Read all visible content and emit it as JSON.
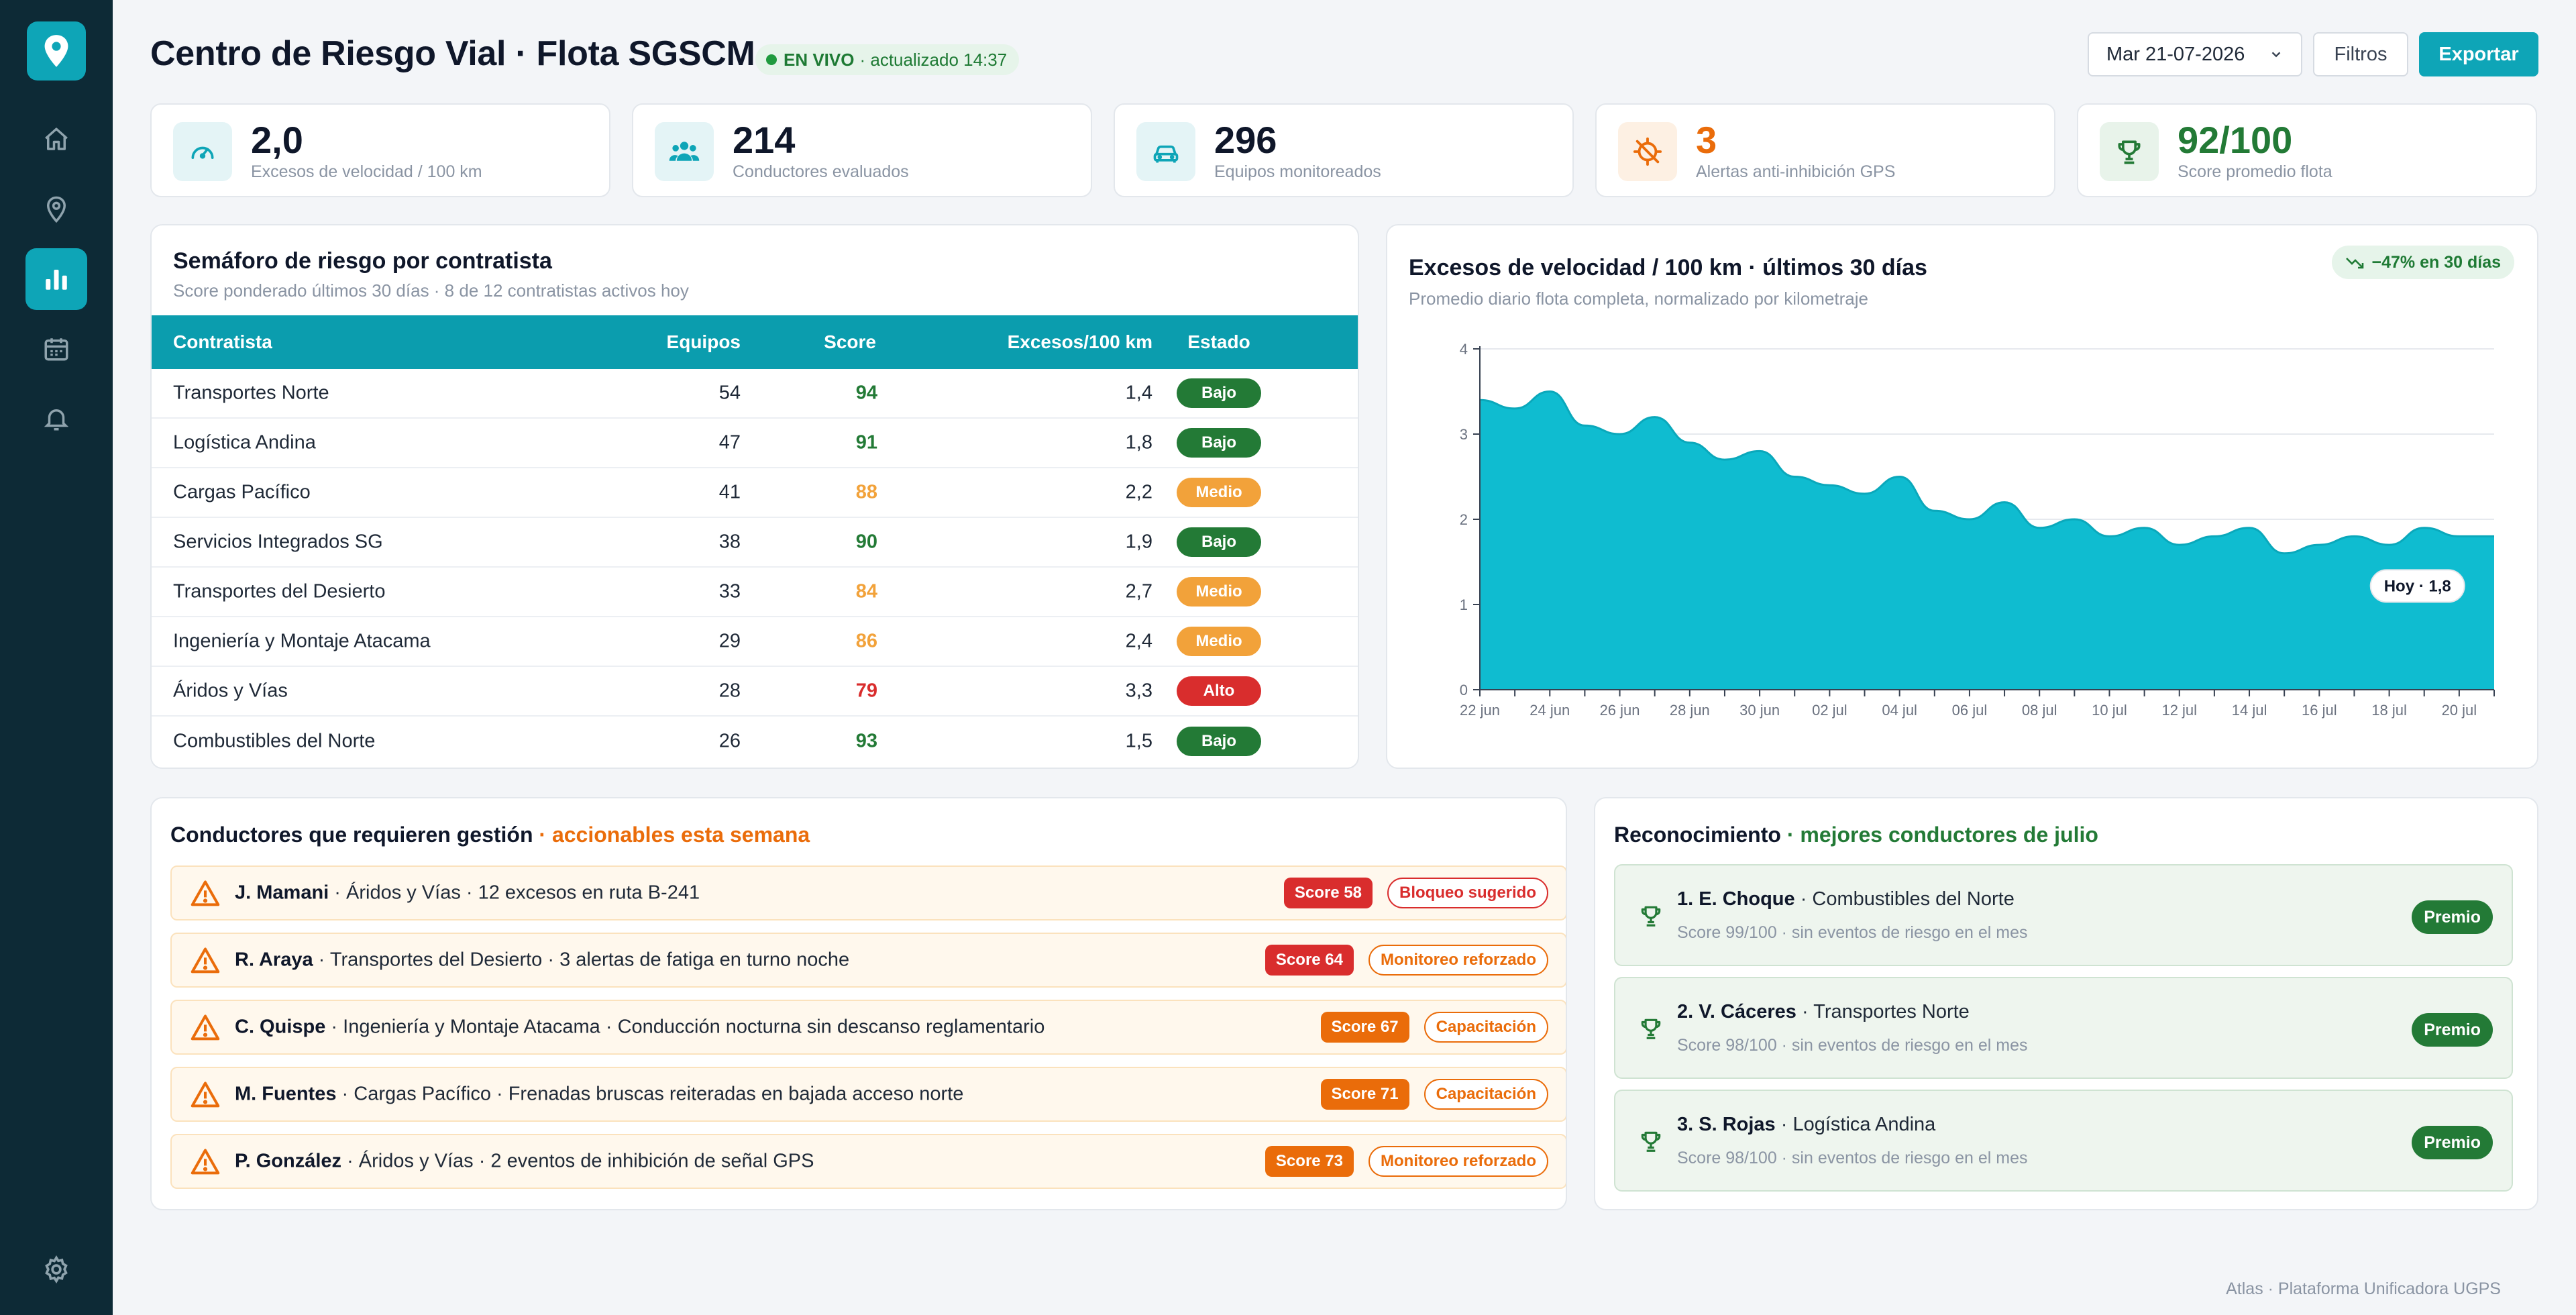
{
  "header": {
    "title": "Centro de Riesgo Vial · Flota SGSCM",
    "live_label": "EN VIVO",
    "live_updated": "· actualizado 14:37",
    "date_value": "Mar 21-07-2026",
    "filters_label": "Filtros",
    "export_label": "Exportar"
  },
  "kpis": [
    {
      "value": "2,0",
      "label": "Excesos de velocidad / 100 km",
      "icon": "speedometer-icon",
      "color": "#0ea5b7",
      "bg": "#e4f4f6"
    },
    {
      "value": "214",
      "label": "Conductores evaluados",
      "icon": "users-icon",
      "color": "#0ea5b7",
      "bg": "#e4f4f6"
    },
    {
      "value": "296",
      "label": "Equipos monitoreados",
      "icon": "car-icon",
      "color": "#0ea5b7",
      "bg": "#e4f4f6"
    },
    {
      "value": "3",
      "label": "Alertas anti-inhibición GPS",
      "icon": "gps-off-icon",
      "color": "#ea6c0a",
      "bg": "#fdf0e3"
    },
    {
      "value": "92/100",
      "label": "Score promedio flota",
      "icon": "trophy-icon",
      "color": "#237a36",
      "bg": "#e8f3ea"
    }
  ],
  "risk_table": {
    "title": "Semáforo de riesgo por contratista",
    "subtitle": "Score ponderado últimos 30 días · 8 de 12 contratistas activos hoy",
    "headers": {
      "name": "Contratista",
      "equipment": "Equipos",
      "score": "Score",
      "excess": "Excesos/100 km",
      "status": "Estado"
    },
    "rows": [
      {
        "name": "Transportes Norte",
        "equipment": "54",
        "score": "94",
        "excess": "1,4",
        "status": "Bajo"
      },
      {
        "name": "Logística Andina",
        "equipment": "47",
        "score": "91",
        "excess": "1,8",
        "status": "Bajo"
      },
      {
        "name": "Cargas Pacífico",
        "equipment": "41",
        "score": "88",
        "excess": "2,2",
        "status": "Medio"
      },
      {
        "name": "Servicios Integrados SG",
        "equipment": "38",
        "score": "90",
        "excess": "1,9",
        "status": "Bajo"
      },
      {
        "name": "Transportes del Desierto",
        "equipment": "33",
        "score": "84",
        "excess": "2,7",
        "status": "Medio"
      },
      {
        "name": "Ingeniería y Montaje Atacama",
        "equipment": "29",
        "score": "86",
        "excess": "2,4",
        "status": "Medio"
      },
      {
        "name": "Áridos y Vías",
        "equipment": "28",
        "score": "79",
        "excess": "3,3",
        "status": "Alto"
      },
      {
        "name": "Combustibles del Norte",
        "equipment": "26",
        "score": "93",
        "excess": "1,5",
        "status": "Bajo"
      }
    ],
    "status_colors": {
      "Bajo": "#237a36",
      "Medio": "#f2a23a",
      "Alto": "#d92d2d"
    },
    "score_colors": {
      "Bajo": "#237a36",
      "Medio": "#f2a23a",
      "Alto": "#d92d2d"
    }
  },
  "chart_panel": {
    "title": "Excesos de velocidad / 100 km · últimos 30 días",
    "subtitle": "Promedio diario flota completa, normalizado por kilometraje",
    "trend_label": "−47% en 30 días"
  },
  "chart_data": {
    "type": "area",
    "x": [
      "22 jun",
      "23 jun",
      "24 jun",
      "25 jun",
      "26 jun",
      "27 jun",
      "28 jun",
      "29 jun",
      "30 jun",
      "01 jul",
      "02 jul",
      "03 jul",
      "04 jul",
      "05 jul",
      "06 jul",
      "07 jul",
      "08 jul",
      "09 jul",
      "10 jul",
      "11 jul",
      "12 jul",
      "13 jul",
      "14 jul",
      "15 jul",
      "16 jul",
      "17 jul",
      "18 jul",
      "19 jul",
      "20 jul",
      "21 jul"
    ],
    "values": [
      3.4,
      3.3,
      3.5,
      3.1,
      3.0,
      3.2,
      2.9,
      2.7,
      2.8,
      2.5,
      2.4,
      2.3,
      2.5,
      2.1,
      2.0,
      2.2,
      1.9,
      2.0,
      1.8,
      1.9,
      1.7,
      1.8,
      1.9,
      1.6,
      1.7,
      1.8,
      1.7,
      1.9,
      1.8,
      1.8
    ],
    "xticks": [
      "22 jun",
      "24 jun",
      "26 jun",
      "28 jun",
      "30 jun",
      "02 jul",
      "04 jul",
      "06 jul",
      "08 jul",
      "10 jul",
      "12 jul",
      "14 jul",
      "16 jul",
      "18 jul",
      "20 jul"
    ],
    "yticks": [
      "0",
      "1",
      "2",
      "3",
      "4"
    ],
    "ylim": [
      0,
      4
    ],
    "grid": true,
    "color": "#0fbcd0",
    "annotation": "Hoy · 1,8"
  },
  "drivers_panel": {
    "title": "Conductores que requieren gestión",
    "title_accent": "· accionables esta semana",
    "items": [
      {
        "name": "J. Mamani",
        "detail": "· Áridos y Vías · 12 excesos en ruta B-241",
        "score": "Score 58",
        "score_color": "#d92d2d",
        "action": "Bloqueo sugerido",
        "action_color": "#d92d2d"
      },
      {
        "name": "R. Araya",
        "detail": "· Transportes del Desierto · 3 alertas de fatiga en turno noche",
        "score": "Score 64",
        "score_color": "#d92d2d",
        "action": "Monitoreo reforzado",
        "action_color": "#ea6c0a"
      },
      {
        "name": "C. Quispe",
        "detail": "· Ingeniería y Montaje Atacama · Conducción nocturna sin descanso reglamentario",
        "score": "Score 67",
        "score_color": "#ea6c0a",
        "action": "Capacitación",
        "action_color": "#ea6c0a"
      },
      {
        "name": "M. Fuentes",
        "detail": "· Cargas Pacífico · Frenadas bruscas reiteradas en bajada acceso norte",
        "score": "Score 71",
        "score_color": "#ea6c0a",
        "action": "Capacitación",
        "action_color": "#ea6c0a"
      },
      {
        "name": "P. González",
        "detail": "· Áridos y Vías · 2 eventos de inhibición de señal GPS",
        "score": "Score 73",
        "score_color": "#ea6c0a",
        "action": "Monitoreo reforzado",
        "action_color": "#ea6c0a"
      }
    ]
  },
  "recognition_panel": {
    "title": "Reconocimiento",
    "title_accent": "· mejores conductores de julio",
    "items": [
      {
        "name": "1. E. Choque",
        "company": "· Combustibles del Norte",
        "sub": "Score 99/100 · sin eventos de riesgo en el mes",
        "badge": "Premio"
      },
      {
        "name": "2. V. Cáceres",
        "company": "· Transportes Norte",
        "sub": "Score 98/100 · sin eventos de riesgo en el mes",
        "badge": "Premio"
      },
      {
        "name": "3. S. Rojas",
        "company": "· Logística Andina",
        "sub": "Score 98/100 · sin eventos de riesgo en el mes",
        "badge": "Premio"
      }
    ]
  },
  "footer": "Atlas · Plataforma Unificadora UGPS"
}
